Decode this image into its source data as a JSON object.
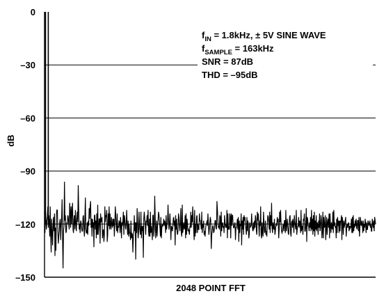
{
  "chart_data": {
    "type": "line",
    "xlabel": "2048 POINT FFT",
    "ylabel": "dB",
    "ylim": [
      -150,
      0
    ],
    "yticks": [
      "0",
      "–30",
      "–60",
      "–90",
      "–120",
      "–150"
    ],
    "ytick_values": [
      0,
      -30,
      -60,
      -90,
      -120,
      -150
    ],
    "grid": "horizontal",
    "annotations": [
      {
        "base": "f",
        "sub": "IN",
        "rest": " = 1.8kHz, ± 5V SINE WAVE"
      },
      {
        "base": "f",
        "sub": "SAMPLE",
        "rest": " = 163kHz"
      },
      {
        "base": "SNR = 87dB",
        "sub": "",
        "rest": ""
      },
      {
        "base": "THD = –95dB",
        "sub": "",
        "rest": ""
      }
    ],
    "annotation_placement": "top-right",
    "fundamental": {
      "x": 5,
      "y": 0
    },
    "noise_floor_mean": -120,
    "series": [
      {
        "x_start": 0,
        "x_step": 1,
        "values": [
          -113,
          -125,
          -112,
          -118,
          -123,
          -118,
          -116,
          -110,
          -122,
          -115,
          -119,
          -127,
          -110,
          -126,
          -136,
          -117,
          -124,
          -132,
          -121,
          -116,
          -124,
          -114,
          -138,
          -122,
          -135,
          -115,
          -112,
          -112,
          -123,
          -131,
          -127,
          -124,
          -119,
          -117,
          -129,
          -121,
          -117,
          -106,
          -128,
          -145,
          -124,
          -121,
          -96,
          -118,
          -115,
          -125,
          -124,
          -119,
          -120,
          -115,
          -116,
          -120,
          -123,
          -108,
          -113,
          -122,
          -110,
          -120,
          -113,
          -108,
          -123,
          -125,
          -117,
          -115,
          -123,
          -112,
          -119,
          -124,
          -117,
          -113,
          -119,
          -98,
          -112,
          -123,
          -120,
          -125,
          -118,
          -119,
          -122,
          -124,
          -124,
          -116,
          -115,
          -123,
          -127,
          -116,
          -105,
          -123,
          -125,
          -125,
          -119,
          -126,
          -118,
          -121,
          -111,
          -117,
          -110,
          -107,
          -122,
          -117,
          -127,
          -117,
          -122,
          -119,
          -133,
          -115,
          -115,
          -123,
          -118,
          -128,
          -114,
          -126,
          -109,
          -126,
          -122,
          -117,
          -117,
          -131,
          -114,
          -119,
          -118,
          -116,
          -128,
          -124,
          -123,
          -130,
          -126,
          -110,
          -119,
          -115,
          -116,
          -112,
          -130,
          -126,
          -114,
          -121,
          -110,
          -123,
          -114,
          -121,
          -123,
          -116,
          -120,
          -122,
          -117,
          -121,
          -117,
          -127,
          -120,
          -110,
          -115,
          -121,
          -124,
          -114,
          -125,
          -121,
          -122,
          -118,
          -119,
          -125,
          -116,
          -120,
          -128,
          -119,
          -121,
          -118,
          -113,
          -126,
          -115,
          -117,
          -121,
          -123,
          -119,
          -112,
          -121,
          -126,
          -118,
          -127,
          -120,
          -125,
          -125,
          -129,
          -118,
          -128,
          -125,
          -126,
          -136,
          -127,
          -124,
          -115,
          -124,
          -119,
          -140,
          -119,
          -125,
          -111,
          -119,
          -128,
          -125,
          -113,
          -121,
          -124,
          -126,
          -113,
          -128,
          -121,
          -124,
          -121,
          -139,
          -117,
          -113,
          -117,
          -120,
          -126,
          -118,
          -119,
          -115,
          -121,
          -112,
          -124,
          -127,
          -117,
          -127,
          -113,
          -125,
          -121,
          -124,
          -129,
          -115,
          -115,
          -127,
          -123,
          -104,
          -116,
          -128,
          -124,
          -118,
          -127,
          -121,
          -118,
          -113,
          -115,
          -119,
          -122,
          -127,
          -116,
          -128,
          -122,
          -120,
          -121,
          -120,
          -117,
          -121,
          -118,
          -120,
          -125,
          -115,
          -123,
          -120,
          -119,
          -109,
          -118,
          -123,
          -120,
          -114,
          -120,
          -129,
          -121,
          -122,
          -124,
          -122,
          -117,
          -116,
          -121,
          -118,
          -132,
          -115,
          -123,
          -117,
          -124,
          -126,
          -124,
          -114,
          -116,
          -121,
          -124,
          -119,
          -111,
          -125,
          -127,
          -109,
          -125,
          -122,
          -119,
          -123,
          -122,
          -115,
          -128,
          -114,
          -126,
          -117,
          -120,
          -124,
          -123,
          -124,
          -126,
          -121,
          -122,
          -113,
          -122,
          -115,
          -119,
          -110,
          -117,
          -123,
          -129,
          -112,
          -127,
          -120,
          -125,
          -116,
          -115,
          -125,
          -120,
          -123,
          -123,
          -114,
          -118,
          -118,
          -120,
          -123,
          -113,
          -125,
          -120,
          -122,
          -118,
          -126,
          -124,
          -127,
          -123,
          -120,
          -120,
          -118,
          -121,
          -114,
          -120,
          -126,
          -123,
          -119,
          -116,
          -118,
          -134,
          -126,
          -124,
          -121,
          -121,
          -125,
          -124,
          -122,
          -118,
          -118,
          -122,
          -123,
          -107,
          -112,
          -118,
          -122,
          -121,
          -123,
          -115,
          -116,
          -127,
          -113,
          -124,
          -120,
          -119,
          -122,
          -121,
          -125,
          -115,
          -119,
          -122,
          -120,
          -122,
          -112,
          -128,
          -114,
          -123,
          -122,
          -123,
          -114,
          -116,
          -128,
          -114,
          -121,
          -115,
          -115,
          -120,
          -122,
          -122,
          -120,
          -119,
          -129,
          -122,
          -122,
          -120,
          -117,
          -123,
          -116,
          -130,
          -118,
          -125,
          -120,
          -121,
          -114,
          -132,
          -118,
          -123,
          -116,
          -126,
          -115,
          -118,
          -116,
          -121,
          -123,
          -126,
          -116,
          -124,
          -118,
          -120,
          -128,
          -126,
          -119,
          -122,
          -121,
          -121,
          -114,
          -120,
          -123,
          -124,
          -119,
          -123,
          -118,
          -122,
          -115,
          -117,
          -124,
          -126,
          -113,
          -118,
          -114,
          -121,
          -127,
          -118,
          -121,
          -110,
          -126,
          -128,
          -119,
          -125,
          -127,
          -113,
          -119,
          -125,
          -124,
          -118,
          -126,
          -124,
          -127,
          -120,
          -115,
          -116,
          -119,
          -123,
          -113,
          -125,
          -115,
          -121,
          -108,
          -122,
          -125,
          -119,
          -122,
          -123,
          -117,
          -126,
          -124,
          -121,
          -120,
          -121,
          -116,
          -119,
          -117,
          -128,
          -123,
          -113,
          -119,
          -112,
          -120,
          -124,
          -125,
          -124,
          -120,
          -121,
          -124,
          -118,
          -118,
          -125,
          -112,
          -124,
          -121,
          -117,
          -121,
          -125,
          -126,
          -120,
          -116,
          -115,
          -125,
          -127,
          -119,
          -118,
          -122,
          -117,
          -120,
          -125,
          -115,
          -119,
          -121,
          -123,
          -112,
          -126,
          -123,
          -121,
          -121,
          -116,
          -122,
          -118,
          -119,
          -125,
          -112,
          -124,
          -121,
          -121,
          -126,
          -117,
          -118,
          -114,
          -124,
          -124,
          -120,
          -111,
          -130,
          -116,
          -117,
          -121,
          -121,
          -124,
          -119,
          -122,
          -116,
          -124,
          -112,
          -123,
          -117,
          -126,
          -115,
          -124,
          -113,
          -127,
          -118,
          -123,
          -115,
          -124,
          -119,
          -120,
          -126,
          -118,
          -122,
          -114,
          -124,
          -122,
          -115,
          -118,
          -128,
          -124,
          -113,
          -128,
          -116,
          -122,
          -121,
          -115,
          -129,
          -123,
          -116,
          -126,
          -119,
          -117,
          -122,
          -114,
          -128,
          -114,
          -121,
          -125,
          -119,
          -122,
          -123,
          -113,
          -125,
          -112,
          -121,
          -119,
          -122,
          -121,
          -128,
          -117,
          -125,
          -116,
          -121,
          -118,
          -125,
          -118,
          -124,
          -118,
          -119,
          -115,
          -129,
          -116,
          -120,
          -126,
          -118,
          -122,
          -120,
          -118,
          -116,
          -127,
          -123,
          -120,
          -122,
          -120,
          -119,
          -124,
          -121,
          -123,
          -121,
          -122,
          -117,
          -125,
          -116,
          -125,
          -115,
          -124,
          -120,
          -122,
          -118,
          -121,
          -117,
          -122,
          -123,
          -118,
          -118,
          -124,
          -116,
          -127,
          -122,
          -116,
          -120,
          -121,
          -118,
          -120,
          -125,
          -118,
          -124,
          -120,
          -122,
          -117,
          -120,
          -125,
          -119,
          -123,
          -123,
          -118,
          -119,
          -121,
          -120,
          -118,
          -122,
          -120,
          -124,
          -124,
          -117,
          -120,
          -122,
          -118,
          -124,
          -116,
          -118,
          -120
        ]
      }
    ]
  }
}
